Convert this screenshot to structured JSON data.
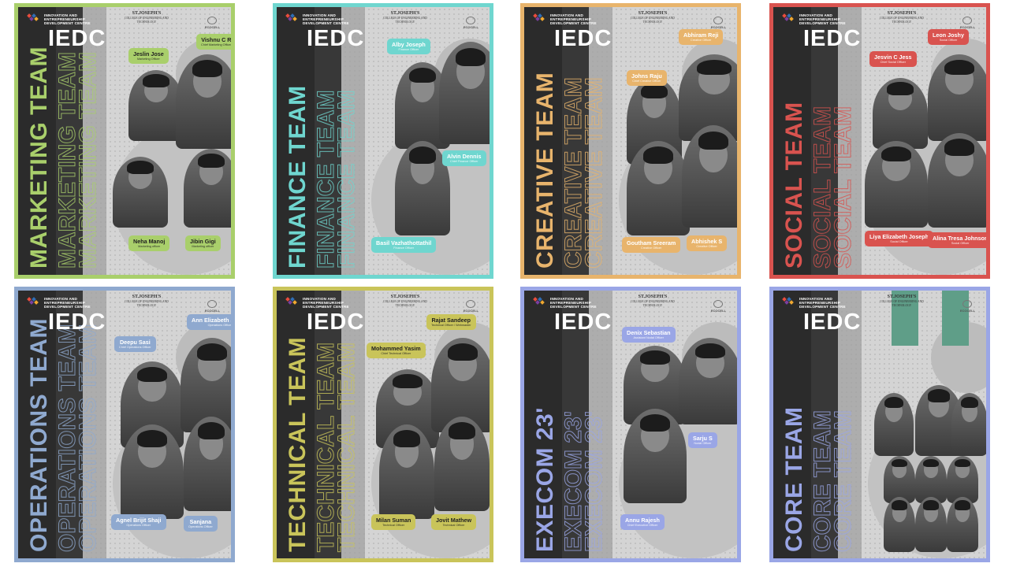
{
  "brand": {
    "lines": [
      "INNOVATION AND",
      "ENTREPRENEURSHIP",
      "DEVELOPMENT CENTRE"
    ],
    "college": "ST.JOSEPH'S",
    "college_sub": "COLLEGE OF ENGINEERING AND TECHNOLOGY",
    "ecell": "ECOCELL",
    "iedc": "IEDC"
  },
  "posters": [
    {
      "title": "MARKETING TEAM",
      "accent": "#a9cf6b",
      "members": [
        {
          "name": "Jeslin Jose",
          "role": "Marketing Officer"
        },
        {
          "name": "Vishnu C R",
          "role": "Chief Marketing Officer"
        },
        {
          "name": "Neha Manoj",
          "role": "Marketing officer"
        },
        {
          "name": "Jibin Gigi",
          "role": "Marketing officer"
        }
      ]
    },
    {
      "title": "FINANCE TEAM",
      "accent": "#6fd6cf",
      "members": [
        {
          "name": "Alby Joseph",
          "role": "Finance Officer"
        },
        {
          "name": "Alvin Dennis",
          "role": "Chief Finance Officer"
        },
        {
          "name": "Basil Vazhathottathil",
          "role": "Finance Officer"
        }
      ]
    },
    {
      "title": "CREATIVE TEAM",
      "accent": "#e8b46c",
      "members": [
        {
          "name": "Johns Raju",
          "role": "Chief Creative Officer"
        },
        {
          "name": "Abhiram Reji",
          "role": "Creative Officer"
        },
        {
          "name": "Goutham Sreeram",
          "role": "Creative Officer"
        },
        {
          "name": "Abhishek S",
          "role": "Creative Officer"
        }
      ]
    },
    {
      "title": "SOCIAL TEAM",
      "accent": "#d9534f",
      "members": [
        {
          "name": "Jesvin C Jess",
          "role": "Chief Social Officer"
        },
        {
          "name": "Leon Joshy",
          "role": "Social Officer"
        },
        {
          "name": "Liya Elizabeth Joseph",
          "role": "Social Officer"
        },
        {
          "name": "Alina Tresa Johnson",
          "role": "Social Officer"
        }
      ]
    },
    {
      "title": "OPERATIONS TEAM",
      "accent": "#8fa9cf",
      "members": [
        {
          "name": "Deepu Sasi",
          "role": "Chief Operations Officer"
        },
        {
          "name": "Ann Elizabeth James",
          "role": "Operations Officer"
        },
        {
          "name": "Agnel Brijit Shaji",
          "role": "Operations Officer"
        },
        {
          "name": "Sanjana",
          "role": "Operations Officer"
        }
      ]
    },
    {
      "title": "TECHNICAL TEAM",
      "accent": "#c9c45a",
      "members": [
        {
          "name": "Mohammed Yasim",
          "role": "Chief Technical Officer"
        },
        {
          "name": "Rajat Sandeep",
          "role": "Technical Officer / Webmaster"
        },
        {
          "name": "Milan Suman",
          "role": "Technical Officer"
        },
        {
          "name": "Jovit Mathew",
          "role": "Technical Officer"
        }
      ]
    },
    {
      "title": "EXECOM 23'",
      "accent": "#9aa6e6",
      "members": [
        {
          "name": "Denix Sebastian",
          "role": "Assistant Nodal Officer"
        },
        {
          "name": "Sarju S",
          "role": "Nodal Officer"
        },
        {
          "name": "Annu Rajesh",
          "role": "Chief Executive Officer"
        }
      ]
    },
    {
      "title": "CORE TEAM",
      "accent": "#9aa6e6",
      "members": []
    }
  ]
}
